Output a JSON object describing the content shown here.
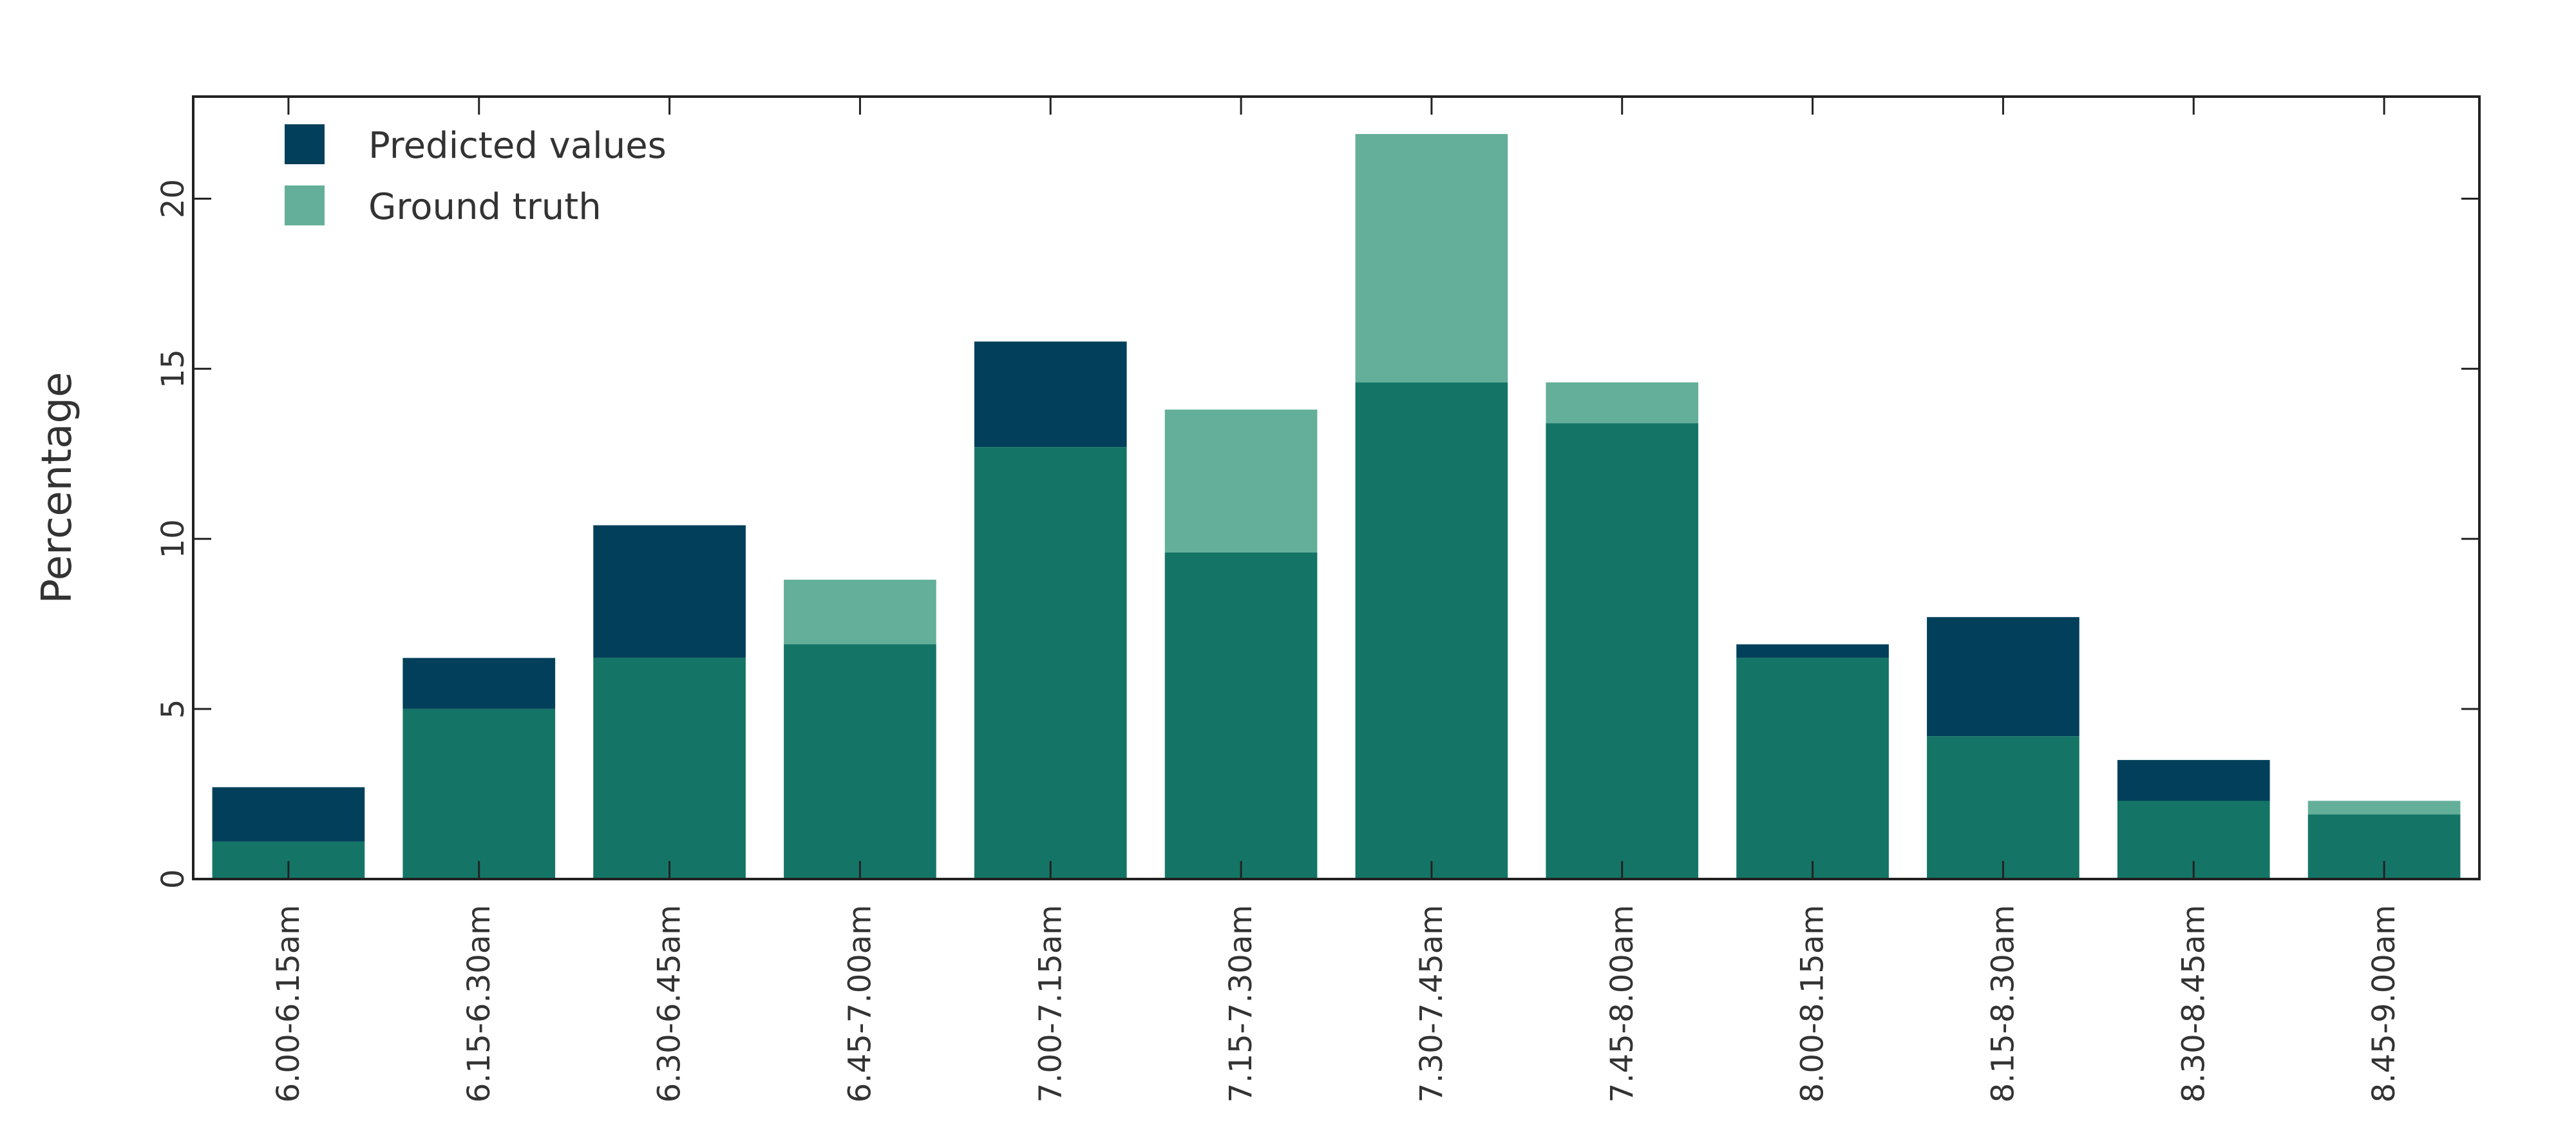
{
  "chart_data": {
    "type": "bar",
    "title": "",
    "xlabel": "",
    "ylabel": "Percentage",
    "ylim": [
      0,
      23
    ],
    "yticks": [
      0,
      5,
      10,
      15,
      20
    ],
    "grid": false,
    "legend_position": "top-left",
    "categories": [
      "6.00-6.15am",
      "6.15-6.30am",
      "6.30-6.45am",
      "6.45-7.00am",
      "7.00-7.15am",
      "7.15-7.30am",
      "7.30-7.45am",
      "7.45-8.00am",
      "8.00-8.15am",
      "8.15-8.30am",
      "8.30-8.45am",
      "8.45-9.00am"
    ],
    "series": [
      {
        "name": "Predicted values",
        "color": "#023f5a",
        "values": [
          2.7,
          6.5,
          10.4,
          6.9,
          15.8,
          9.6,
          14.6,
          13.4,
          6.9,
          7.7,
          3.5,
          1.9
        ]
      },
      {
        "name": "Ground truth",
        "color": "#63af9a",
        "values": [
          1.1,
          5.0,
          6.5,
          8.8,
          12.7,
          13.8,
          21.9,
          14.6,
          6.5,
          4.2,
          2.3,
          2.3
        ]
      }
    ],
    "overlap_color": "#147567"
  }
}
